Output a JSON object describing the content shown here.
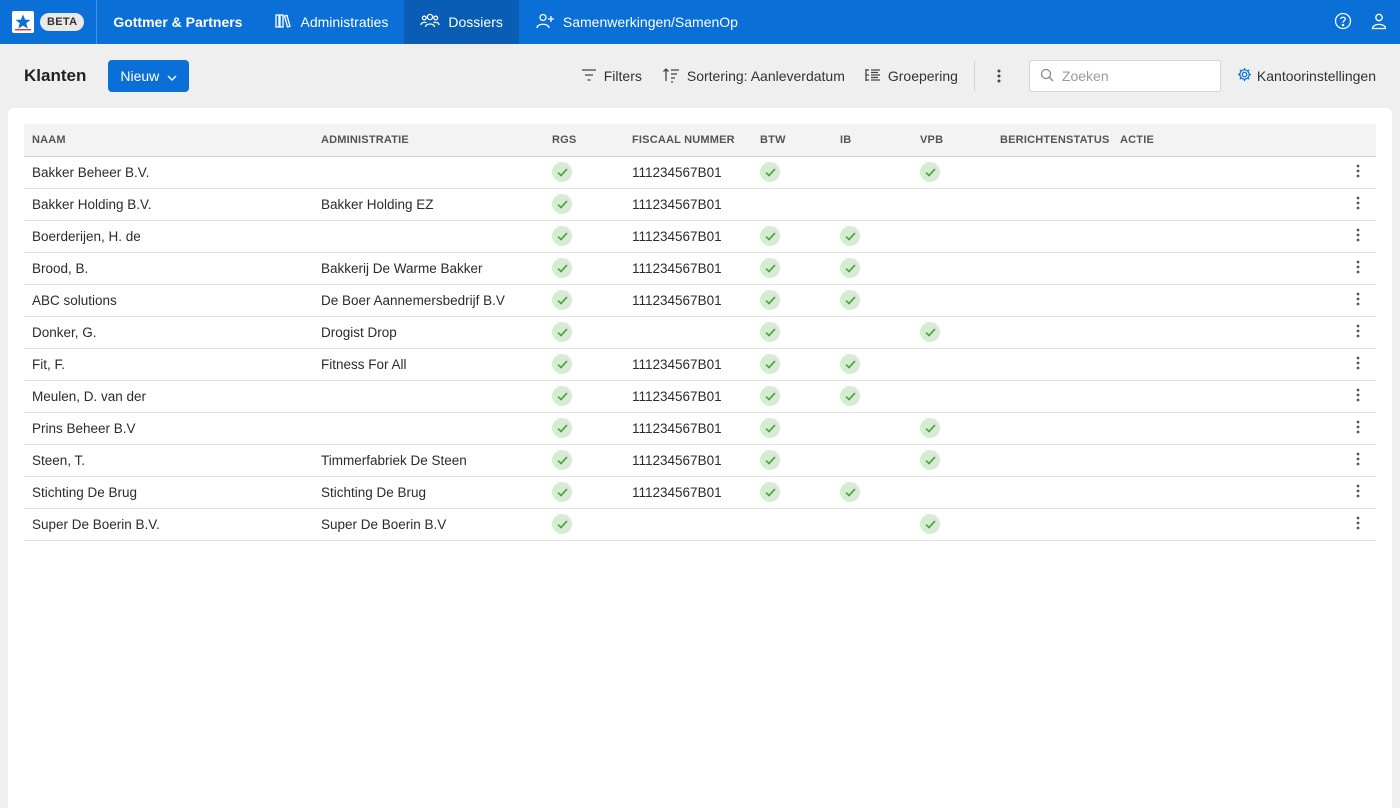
{
  "header": {
    "beta_label": "BETA",
    "org_name": "Gottmer & Partners",
    "nav": [
      {
        "label": "Administraties",
        "icon": "books-icon",
        "active": false
      },
      {
        "label": "Dossiers",
        "icon": "users-icon",
        "active": true
      },
      {
        "label": "Samenwerkingen/SamenOp",
        "icon": "user-plus-icon",
        "active": false
      }
    ],
    "colors": {
      "primary": "#0a6fd6",
      "active_nav": "#0a5db5"
    }
  },
  "toolbar": {
    "title": "Klanten",
    "new_label": "Nieuw",
    "filters_label": "Filters",
    "sort_label": "Sortering: Aanleverdatum",
    "group_label": "Groepering",
    "search_placeholder": "Zoeken",
    "settings_label": "Kantoorinstellingen"
  },
  "table": {
    "columns": [
      "NAAM",
      "ADMINISTRATIE",
      "RGS",
      "FISCAAL NUMMER",
      "BTW",
      "IB",
      "VPB",
      "BERICHTENSTATUS",
      "ACTIE"
    ],
    "rows": [
      {
        "naam": "Bakker Beheer B.V.",
        "administratie": "",
        "rgs": true,
        "fiscaal": "111234567B01",
        "btw": true,
        "ib": false,
        "vpb": true
      },
      {
        "naam": "Bakker Holding B.V.",
        "administratie": "Bakker Holding EZ",
        "rgs": true,
        "fiscaal": "111234567B01",
        "btw": false,
        "ib": false,
        "vpb": false
      },
      {
        "naam": "Boerderijen, H. de",
        "administratie": "",
        "rgs": true,
        "fiscaal": "111234567B01",
        "btw": true,
        "ib": true,
        "vpb": false
      },
      {
        "naam": "Brood, B.",
        "administratie": "Bakkerij De Warme Bakker",
        "rgs": true,
        "fiscaal": "111234567B01",
        "btw": true,
        "ib": true,
        "vpb": false
      },
      {
        "naam": "ABC solutions",
        "administratie": "De Boer Aannemersbedrijf B.V",
        "rgs": true,
        "fiscaal": "111234567B01",
        "btw": true,
        "ib": true,
        "vpb": false
      },
      {
        "naam": "Donker, G.",
        "administratie": "Drogist Drop",
        "rgs": true,
        "fiscaal": "",
        "btw": true,
        "ib": false,
        "vpb": true
      },
      {
        "naam": "Fit, F.",
        "administratie": "Fitness For All",
        "rgs": true,
        "fiscaal": "111234567B01",
        "btw": true,
        "ib": true,
        "vpb": false
      },
      {
        "naam": "Meulen, D. van der",
        "administratie": "",
        "rgs": true,
        "fiscaal": "111234567B01",
        "btw": true,
        "ib": true,
        "vpb": false
      },
      {
        "naam": "Prins Beheer B.V",
        "administratie": "",
        "rgs": true,
        "fiscaal": "111234567B01",
        "btw": true,
        "ib": false,
        "vpb": true
      },
      {
        "naam": "Steen, T.",
        "administratie": "Timmerfabriek De Steen",
        "rgs": true,
        "fiscaal": "111234567B01",
        "btw": true,
        "ib": false,
        "vpb": true
      },
      {
        "naam": "Stichting De Brug",
        "administratie": "Stichting De Brug",
        "rgs": true,
        "fiscaal": "111234567B01",
        "btw": true,
        "ib": true,
        "vpb": false
      },
      {
        "naam": "Super De Boerin B.V.",
        "administratie": "Super De Boerin B.V",
        "rgs": true,
        "fiscaal": "",
        "btw": false,
        "ib": false,
        "vpb": true
      }
    ],
    "check_color": "#3c9a3f",
    "check_bg": "#d5ecd3"
  }
}
